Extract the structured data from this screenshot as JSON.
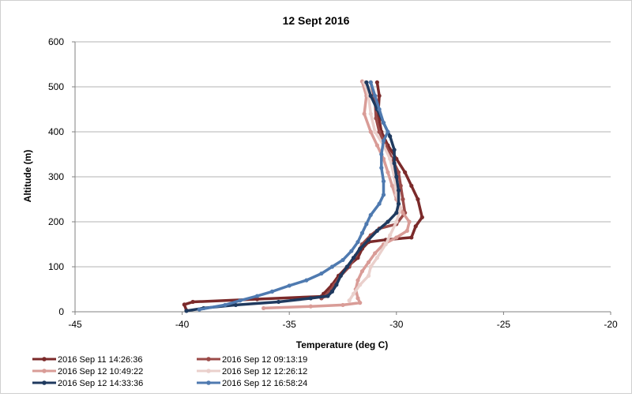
{
  "chart_data": {
    "type": "line",
    "title": "12 Sept 2016",
    "xlabel": "Temperature (deg C)",
    "ylabel": "Altitude (m)",
    "xlim": [
      -45,
      -20
    ],
    "ylim": [
      0,
      600
    ],
    "xticks": [
      -45,
      -40,
      -35,
      -30,
      -25,
      -20
    ],
    "yticks": [
      0,
      100,
      200,
      300,
      400,
      500,
      600
    ],
    "grid": "horizontal",
    "legend_position": "bottom",
    "series": [
      {
        "name": "2016 Sep 11 14:26:36",
        "color": "#7b2a2a",
        "points": [
          [
            -30.9,
            510
          ],
          [
            -30.8,
            480
          ],
          [
            -30.85,
            440
          ],
          [
            -30.7,
            400
          ],
          [
            -30.4,
            370
          ],
          [
            -30.0,
            340
          ],
          [
            -29.6,
            310
          ],
          [
            -29.3,
            280
          ],
          [
            -29.0,
            250
          ],
          [
            -28.8,
            210
          ],
          [
            -29.1,
            190
          ],
          [
            -29.3,
            165
          ],
          [
            -30.5,
            160
          ],
          [
            -31.3,
            155
          ],
          [
            -31.6,
            140
          ],
          [
            -31.8,
            120
          ],
          [
            -32.3,
            100
          ],
          [
            -32.7,
            80
          ],
          [
            -33.0,
            60
          ],
          [
            -33.4,
            40
          ],
          [
            -33.5,
            34
          ],
          [
            -36.5,
            28
          ],
          [
            -39.5,
            22
          ],
          [
            -39.9,
            16
          ],
          [
            -39.8,
            3
          ]
        ]
      },
      {
        "name": "2016 Sep 12 09:13:19",
        "color": "#9b4a48",
        "points": [
          [
            -31.2,
            510
          ],
          [
            -31.0,
            470
          ],
          [
            -30.95,
            430
          ],
          [
            -30.8,
            400
          ],
          [
            -30.5,
            370
          ],
          [
            -30.2,
            340
          ],
          [
            -29.9,
            310
          ],
          [
            -29.8,
            280
          ],
          [
            -29.7,
            250
          ],
          [
            -29.6,
            220
          ],
          [
            -30.0,
            195
          ],
          [
            -30.8,
            185
          ],
          [
            -31.2,
            170
          ],
          [
            -31.6,
            150
          ],
          [
            -31.9,
            125
          ],
          [
            -32.2,
            100
          ],
          [
            -32.6,
            80
          ],
          [
            -32.9,
            60
          ],
          [
            -33.2,
            40
          ],
          [
            -33.3,
            35
          ],
          [
            -33.5,
            30
          ]
        ]
      },
      {
        "name": "2016 Sep 12 10:49:22",
        "color": "#d99c97",
        "points": [
          [
            -31.6,
            512
          ],
          [
            -31.4,
            480
          ],
          [
            -31.5,
            440
          ],
          [
            -31.2,
            400
          ],
          [
            -30.9,
            370
          ],
          [
            -30.6,
            340
          ],
          [
            -30.4,
            310
          ],
          [
            -30.2,
            280
          ],
          [
            -30.0,
            250
          ],
          [
            -29.7,
            220
          ],
          [
            -29.4,
            200
          ],
          [
            -29.5,
            180
          ],
          [
            -30.0,
            165
          ],
          [
            -30.6,
            150
          ],
          [
            -31.0,
            130
          ],
          [
            -31.3,
            110
          ],
          [
            -31.6,
            90
          ],
          [
            -31.8,
            70
          ],
          [
            -31.9,
            50
          ],
          [
            -31.8,
            30
          ],
          [
            -31.7,
            20
          ],
          [
            -32.5,
            15
          ],
          [
            -34.0,
            12
          ],
          [
            -36.2,
            8
          ]
        ]
      },
      {
        "name": "2016 Sep 12 12:26:12",
        "color": "#ead0cc",
        "points": [
          [
            -31.5,
            510
          ],
          [
            -31.3,
            480
          ],
          [
            -31.2,
            440
          ],
          [
            -31.0,
            400
          ],
          [
            -30.6,
            370
          ],
          [
            -30.3,
            340
          ],
          [
            -30.1,
            300
          ],
          [
            -30.0,
            260
          ],
          [
            -29.8,
            230
          ],
          [
            -30.0,
            200
          ],
          [
            -30.3,
            170
          ],
          [
            -30.5,
            150
          ],
          [
            -30.9,
            120
          ],
          [
            -31.2,
            100
          ],
          [
            -31.3,
            80
          ],
          [
            -31.7,
            60
          ],
          [
            -32.0,
            40
          ],
          [
            -32.2,
            25
          ]
        ]
      },
      {
        "name": "2016 Sep 12 14:33:36",
        "color": "#1f3a5f",
        "points": [
          [
            -31.4,
            510
          ],
          [
            -31.2,
            480
          ],
          [
            -30.9,
            450
          ],
          [
            -30.6,
            420
          ],
          [
            -30.3,
            390
          ],
          [
            -30.1,
            360
          ],
          [
            -30.1,
            330
          ],
          [
            -30.0,
            300
          ],
          [
            -29.9,
            270
          ],
          [
            -29.9,
            240
          ],
          [
            -30.0,
            220
          ],
          [
            -30.4,
            200
          ],
          [
            -30.9,
            180
          ],
          [
            -31.3,
            160
          ],
          [
            -31.7,
            140
          ],
          [
            -32.0,
            120
          ],
          [
            -32.3,
            100
          ],
          [
            -32.6,
            80
          ],
          [
            -32.8,
            60
          ],
          [
            -33.0,
            45
          ],
          [
            -33.2,
            35
          ],
          [
            -34.0,
            30
          ],
          [
            -35.5,
            22
          ],
          [
            -37.5,
            15
          ],
          [
            -39.0,
            8
          ],
          [
            -39.8,
            2
          ]
        ]
      },
      {
        "name": "2016 Sep 12 16:58:24",
        "color": "#4f7ab0",
        "points": [
          [
            -31.2,
            510
          ],
          [
            -31.0,
            480
          ],
          [
            -30.8,
            450
          ],
          [
            -30.6,
            420
          ],
          [
            -30.4,
            400
          ],
          [
            -30.6,
            380
          ],
          [
            -30.7,
            350
          ],
          [
            -30.7,
            320
          ],
          [
            -30.6,
            290
          ],
          [
            -30.6,
            260
          ],
          [
            -30.8,
            240
          ],
          [
            -31.2,
            215
          ],
          [
            -31.4,
            195
          ],
          [
            -31.6,
            175
          ],
          [
            -31.8,
            155
          ],
          [
            -32.1,
            135
          ],
          [
            -32.5,
            115
          ],
          [
            -33.0,
            100
          ],
          [
            -33.5,
            85
          ],
          [
            -34.2,
            70
          ],
          [
            -35.0,
            58
          ],
          [
            -35.8,
            45
          ],
          [
            -36.5,
            35
          ],
          [
            -37.3,
            25
          ],
          [
            -38.0,
            15
          ],
          [
            -39.2,
            5
          ]
        ]
      }
    ]
  }
}
